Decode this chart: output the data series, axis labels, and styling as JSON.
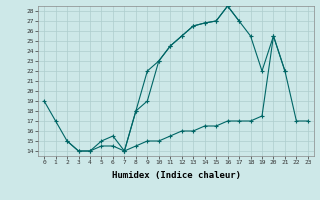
{
  "xlabel": "Humidex (Indice chaleur)",
  "bg_color": "#cde8e8",
  "grid_color": "#aecece",
  "line_color": "#006666",
  "xlim": [
    -0.5,
    23.5
  ],
  "ylim": [
    13.5,
    28.5
  ],
  "xticks": [
    0,
    1,
    2,
    3,
    4,
    5,
    6,
    7,
    8,
    9,
    10,
    11,
    12,
    13,
    14,
    15,
    16,
    17,
    18,
    19,
    20,
    21,
    22,
    23
  ],
  "yticks": [
    14,
    15,
    16,
    17,
    18,
    19,
    20,
    21,
    22,
    23,
    24,
    25,
    26,
    27,
    28
  ],
  "lineA_x": [
    0,
    1,
    2,
    3,
    4,
    5,
    6,
    7,
    8,
    9,
    10,
    11,
    12,
    13,
    14,
    15,
    16,
    17
  ],
  "lineA_y": [
    19,
    17,
    15,
    14,
    14,
    15,
    15.5,
    14,
    18,
    19,
    23,
    24.5,
    25.5,
    26.5,
    26.8,
    27,
    28.5,
    27
  ],
  "lineB_x": [
    7,
    8,
    9,
    10,
    11,
    12,
    13,
    14,
    15,
    16,
    17,
    18,
    19,
    20,
    21
  ],
  "lineB_y": [
    14,
    18,
    22,
    23,
    24.5,
    25.5,
    26.5,
    26.8,
    27,
    28.5,
    27,
    25.5,
    22,
    25.5,
    22
  ],
  "lineC_x": [
    2,
    3,
    4,
    5,
    6,
    7,
    8,
    9,
    10,
    11,
    12,
    13,
    14,
    15,
    16,
    17,
    18,
    19,
    20,
    21,
    22,
    23
  ],
  "lineC_y": [
    15,
    14,
    14,
    14.5,
    14.5,
    14,
    14.5,
    15,
    15,
    15.5,
    16,
    16,
    16.5,
    16.5,
    17,
    17,
    17,
    17.5,
    25.5,
    22,
    17,
    17
  ]
}
